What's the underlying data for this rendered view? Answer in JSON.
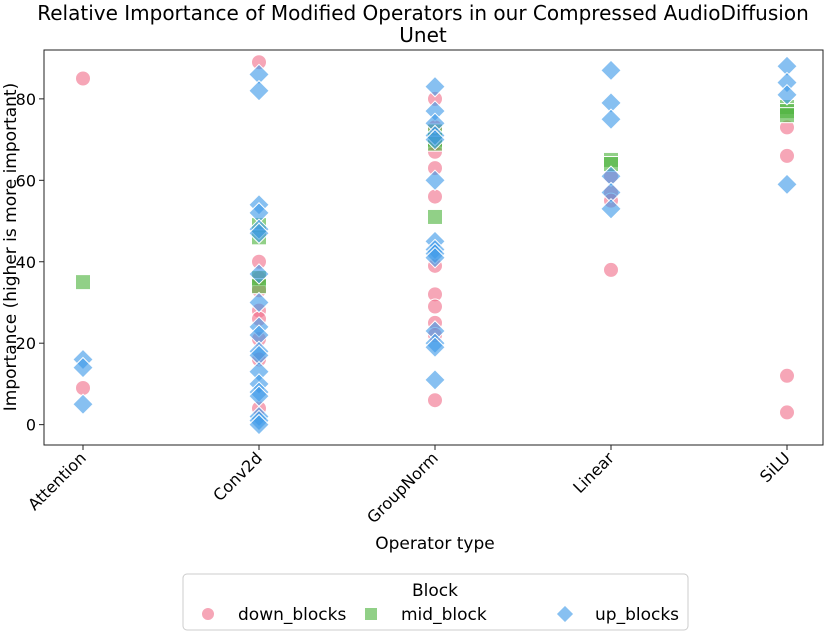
{
  "chart_data": {
    "type": "scatter",
    "title_line1": "Relative Importance of Modified Operators in our Compressed AudioDiffusion",
    "title_line2": "Unet",
    "xlabel": "Operator type",
    "ylabel": "Importance (higher is more important)",
    "categories": [
      "Attention",
      "Conv2d",
      "GroupNorm",
      "Linear",
      "SiLU"
    ],
    "yticks": [
      "0",
      "20",
      "40",
      "60",
      "80"
    ],
    "ylim": [
      -5,
      92
    ],
    "grid": false,
    "legend": {
      "title": "Block",
      "placement": "bottom-center",
      "entries": [
        "down_blocks",
        "mid_block",
        "up_blocks"
      ]
    },
    "series": [
      {
        "name": "down_blocks",
        "marker": "circle",
        "color": "#f0708a",
        "points": [
          {
            "x": "Attention",
            "y": 85
          },
          {
            "x": "Attention",
            "y": 9
          },
          {
            "x": "Conv2d",
            "y": 89
          },
          {
            "x": "Conv2d",
            "y": 40
          },
          {
            "x": "Conv2d",
            "y": 36
          },
          {
            "x": "Conv2d",
            "y": 33
          },
          {
            "x": "Conv2d",
            "y": 28
          },
          {
            "x": "Conv2d",
            "y": 26
          },
          {
            "x": "Conv2d",
            "y": 21
          },
          {
            "x": "Conv2d",
            "y": 16
          },
          {
            "x": "Conv2d",
            "y": 4
          },
          {
            "x": "GroupNorm",
            "y": 80
          },
          {
            "x": "GroupNorm",
            "y": 73
          },
          {
            "x": "GroupNorm",
            "y": 69
          },
          {
            "x": "GroupNorm",
            "y": 67
          },
          {
            "x": "GroupNorm",
            "y": 63
          },
          {
            "x": "GroupNorm",
            "y": 56
          },
          {
            "x": "GroupNorm",
            "y": 39
          },
          {
            "x": "GroupNorm",
            "y": 32
          },
          {
            "x": "GroupNorm",
            "y": 29
          },
          {
            "x": "GroupNorm",
            "y": 25
          },
          {
            "x": "GroupNorm",
            "y": 22
          },
          {
            "x": "GroupNorm",
            "y": 6
          },
          {
            "x": "Linear",
            "y": 61
          },
          {
            "x": "Linear",
            "y": 57
          },
          {
            "x": "Linear",
            "y": 55
          },
          {
            "x": "Linear",
            "y": 38
          },
          {
            "x": "SiLU",
            "y": 73
          },
          {
            "x": "SiLU",
            "y": 66
          },
          {
            "x": "SiLU",
            "y": 12
          },
          {
            "x": "SiLU",
            "y": 3
          }
        ]
      },
      {
        "name": "mid_block",
        "marker": "square",
        "color": "#4db33d",
        "points": [
          {
            "x": "Attention",
            "y": 35
          },
          {
            "x": "Conv2d",
            "y": 49
          },
          {
            "x": "Conv2d",
            "y": 46
          },
          {
            "x": "Conv2d",
            "y": 36
          },
          {
            "x": "Conv2d",
            "y": 34
          },
          {
            "x": "GroupNorm",
            "y": 72
          },
          {
            "x": "GroupNorm",
            "y": 70
          },
          {
            "x": "GroupNorm",
            "y": 69
          },
          {
            "x": "GroupNorm",
            "y": 51
          },
          {
            "x": "Linear",
            "y": 65
          },
          {
            "x": "Linear",
            "y": 64
          },
          {
            "x": "SiLU",
            "y": 78
          },
          {
            "x": "SiLU",
            "y": 77
          },
          {
            "x": "SiLU",
            "y": 76
          }
        ]
      },
      {
        "name": "up_blocks",
        "marker": "diamond",
        "color": "#3d9ae8",
        "points": [
          {
            "x": "Attention",
            "y": 16
          },
          {
            "x": "Attention",
            "y": 14
          },
          {
            "x": "Attention",
            "y": 5
          },
          {
            "x": "Conv2d",
            "y": 86
          },
          {
            "x": "Conv2d",
            "y": 82
          },
          {
            "x": "Conv2d",
            "y": 54
          },
          {
            "x": "Conv2d",
            "y": 52
          },
          {
            "x": "Conv2d",
            "y": 48
          },
          {
            "x": "Conv2d",
            "y": 47
          },
          {
            "x": "Conv2d",
            "y": 37
          },
          {
            "x": "Conv2d",
            "y": 30
          },
          {
            "x": "Conv2d",
            "y": 24
          },
          {
            "x": "Conv2d",
            "y": 22
          },
          {
            "x": "Conv2d",
            "y": 18
          },
          {
            "x": "Conv2d",
            "y": 17
          },
          {
            "x": "Conv2d",
            "y": 13
          },
          {
            "x": "Conv2d",
            "y": 10
          },
          {
            "x": "Conv2d",
            "y": 8
          },
          {
            "x": "Conv2d",
            "y": 7
          },
          {
            "x": "Conv2d",
            "y": 2
          },
          {
            "x": "Conv2d",
            "y": 1
          },
          {
            "x": "Conv2d",
            "y": 0
          },
          {
            "x": "GroupNorm",
            "y": 83
          },
          {
            "x": "GroupNorm",
            "y": 77
          },
          {
            "x": "GroupNorm",
            "y": 74
          },
          {
            "x": "GroupNorm",
            "y": 71
          },
          {
            "x": "GroupNorm",
            "y": 70
          },
          {
            "x": "GroupNorm",
            "y": 60
          },
          {
            "x": "GroupNorm",
            "y": 45
          },
          {
            "x": "GroupNorm",
            "y": 43
          },
          {
            "x": "GroupNorm",
            "y": 42
          },
          {
            "x": "GroupNorm",
            "y": 41
          },
          {
            "x": "GroupNorm",
            "y": 23
          },
          {
            "x": "GroupNorm",
            "y": 20
          },
          {
            "x": "GroupNorm",
            "y": 19
          },
          {
            "x": "GroupNorm",
            "y": 11
          },
          {
            "x": "Linear",
            "y": 87
          },
          {
            "x": "Linear",
            "y": 79
          },
          {
            "x": "Linear",
            "y": 75
          },
          {
            "x": "Linear",
            "y": 61
          },
          {
            "x": "Linear",
            "y": 57
          },
          {
            "x": "Linear",
            "y": 53
          },
          {
            "x": "SiLU",
            "y": 88
          },
          {
            "x": "SiLU",
            "y": 84
          },
          {
            "x": "SiLU",
            "y": 81
          },
          {
            "x": "SiLU",
            "y": 59
          }
        ]
      }
    ]
  }
}
